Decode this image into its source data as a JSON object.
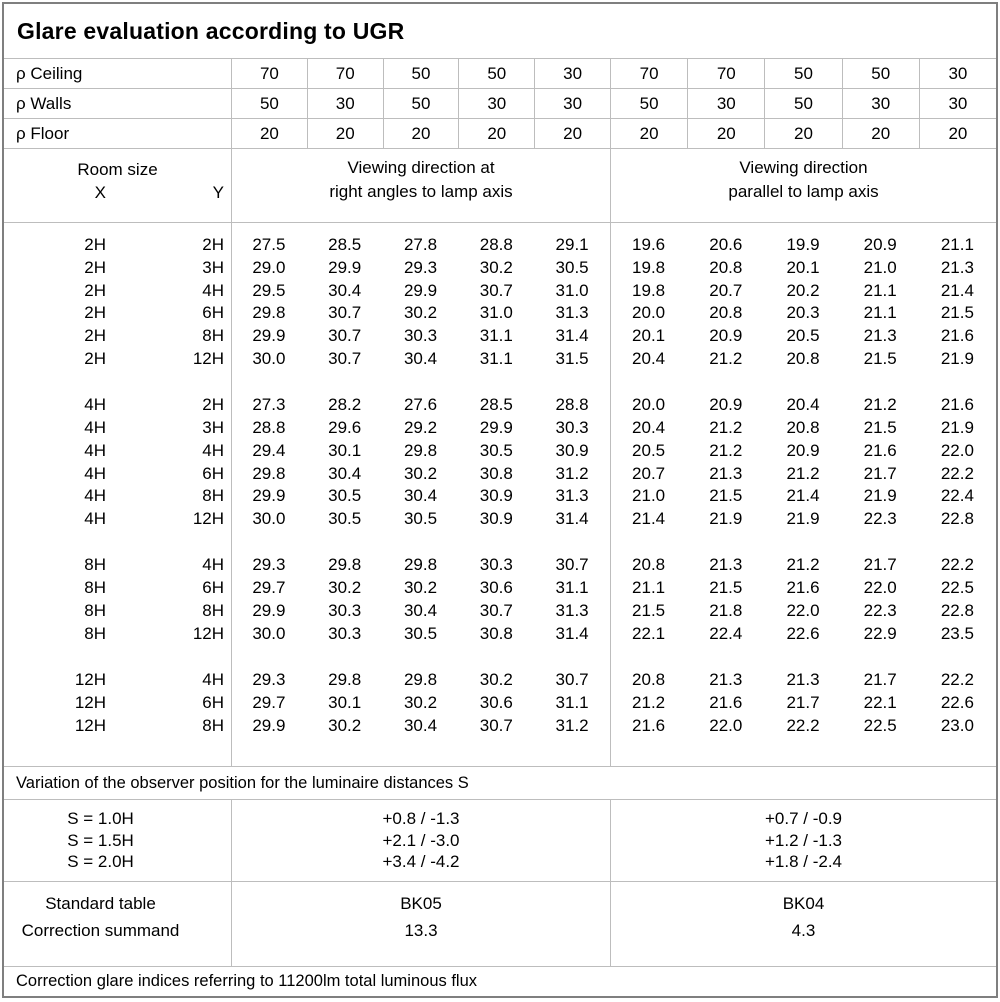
{
  "title": "Glare evaluation according to UGR",
  "reflectances": {
    "rows": [
      {
        "label": "ρ Ceiling",
        "values": [
          "70",
          "70",
          "50",
          "50",
          "30",
          "70",
          "70",
          "50",
          "50",
          "30"
        ]
      },
      {
        "label": "ρ Walls",
        "values": [
          "50",
          "30",
          "50",
          "30",
          "30",
          "50",
          "30",
          "50",
          "30",
          "30"
        ]
      },
      {
        "label": "ρ Floor",
        "values": [
          "20",
          "20",
          "20",
          "20",
          "20",
          "20",
          "20",
          "20",
          "20",
          "20"
        ]
      }
    ]
  },
  "header": {
    "room_size": "Room size",
    "x": "X",
    "y": "Y",
    "crosswise": [
      "Viewing direction at",
      "right angles to lamp axis"
    ],
    "parallel": [
      "Viewing direction",
      "parallel to lamp axis"
    ]
  },
  "ugr_table": {
    "blocks": [
      {
        "rows": [
          {
            "x": "2H",
            "y": "2H",
            "crosswise": [
              "27.5",
              "28.5",
              "27.8",
              "28.8",
              "29.1"
            ],
            "parallel": [
              "19.6",
              "20.6",
              "19.9",
              "20.9",
              "21.1"
            ]
          },
          {
            "x": "2H",
            "y": "3H",
            "crosswise": [
              "29.0",
              "29.9",
              "29.3",
              "30.2",
              "30.5"
            ],
            "parallel": [
              "19.8",
              "20.8",
              "20.1",
              "21.0",
              "21.3"
            ]
          },
          {
            "x": "2H",
            "y": "4H",
            "crosswise": [
              "29.5",
              "30.4",
              "29.9",
              "30.7",
              "31.0"
            ],
            "parallel": [
              "19.8",
              "20.7",
              "20.2",
              "21.1",
              "21.4"
            ]
          },
          {
            "x": "2H",
            "y": "6H",
            "crosswise": [
              "29.8",
              "30.7",
              "30.2",
              "31.0",
              "31.3"
            ],
            "parallel": [
              "20.0",
              "20.8",
              "20.3",
              "21.1",
              "21.5"
            ]
          },
          {
            "x": "2H",
            "y": "8H",
            "crosswise": [
              "29.9",
              "30.7",
              "30.3",
              "31.1",
              "31.4"
            ],
            "parallel": [
              "20.1",
              "20.9",
              "20.5",
              "21.3",
              "21.6"
            ]
          },
          {
            "x": "2H",
            "y": "12H",
            "crosswise": [
              "30.0",
              "30.7",
              "30.4",
              "31.1",
              "31.5"
            ],
            "parallel": [
              "20.4",
              "21.2",
              "20.8",
              "21.5",
              "21.9"
            ]
          }
        ]
      },
      {
        "rows": [
          {
            "x": "4H",
            "y": "2H",
            "crosswise": [
              "27.3",
              "28.2",
              "27.6",
              "28.5",
              "28.8"
            ],
            "parallel": [
              "20.0",
              "20.9",
              "20.4",
              "21.2",
              "21.6"
            ]
          },
          {
            "x": "4H",
            "y": "3H",
            "crosswise": [
              "28.8",
              "29.6",
              "29.2",
              "29.9",
              "30.3"
            ],
            "parallel": [
              "20.4",
              "21.2",
              "20.8",
              "21.5",
              "21.9"
            ]
          },
          {
            "x": "4H",
            "y": "4H",
            "crosswise": [
              "29.4",
              "30.1",
              "29.8",
              "30.5",
              "30.9"
            ],
            "parallel": [
              "20.5",
              "21.2",
              "20.9",
              "21.6",
              "22.0"
            ]
          },
          {
            "x": "4H",
            "y": "6H",
            "crosswise": [
              "29.8",
              "30.4",
              "30.2",
              "30.8",
              "31.2"
            ],
            "parallel": [
              "20.7",
              "21.3",
              "21.2",
              "21.7",
              "22.2"
            ]
          },
          {
            "x": "4H",
            "y": "8H",
            "crosswise": [
              "29.9",
              "30.5",
              "30.4",
              "30.9",
              "31.3"
            ],
            "parallel": [
              "21.0",
              "21.5",
              "21.4",
              "21.9",
              "22.4"
            ]
          },
          {
            "x": "4H",
            "y": "12H",
            "crosswise": [
              "30.0",
              "30.5",
              "30.5",
              "30.9",
              "31.4"
            ],
            "parallel": [
              "21.4",
              "21.9",
              "21.9",
              "22.3",
              "22.8"
            ]
          }
        ]
      },
      {
        "rows": [
          {
            "x": "8H",
            "y": "4H",
            "crosswise": [
              "29.3",
              "29.8",
              "29.8",
              "30.3",
              "30.7"
            ],
            "parallel": [
              "20.8",
              "21.3",
              "21.2",
              "21.7",
              "22.2"
            ]
          },
          {
            "x": "8H",
            "y": "6H",
            "crosswise": [
              "29.7",
              "30.2",
              "30.2",
              "30.6",
              "31.1"
            ],
            "parallel": [
              "21.1",
              "21.5",
              "21.6",
              "22.0",
              "22.5"
            ]
          },
          {
            "x": "8H",
            "y": "8H",
            "crosswise": [
              "29.9",
              "30.3",
              "30.4",
              "30.7",
              "31.3"
            ],
            "parallel": [
              "21.5",
              "21.8",
              "22.0",
              "22.3",
              "22.8"
            ]
          },
          {
            "x": "8H",
            "y": "12H",
            "crosswise": [
              "30.0",
              "30.3",
              "30.5",
              "30.8",
              "31.4"
            ],
            "parallel": [
              "22.1",
              "22.4",
              "22.6",
              "22.9",
              "23.5"
            ]
          }
        ]
      },
      {
        "rows": [
          {
            "x": "12H",
            "y": "4H",
            "crosswise": [
              "29.3",
              "29.8",
              "29.8",
              "30.2",
              "30.7"
            ],
            "parallel": [
              "20.8",
              "21.3",
              "21.3",
              "21.7",
              "22.2"
            ]
          },
          {
            "x": "12H",
            "y": "6H",
            "crosswise": [
              "29.7",
              "30.1",
              "30.2",
              "30.6",
              "31.1"
            ],
            "parallel": [
              "21.2",
              "21.6",
              "21.7",
              "22.1",
              "22.6"
            ]
          },
          {
            "x": "12H",
            "y": "8H",
            "crosswise": [
              "29.9",
              "30.2",
              "30.4",
              "30.7",
              "31.2"
            ],
            "parallel": [
              "21.6",
              "22.0",
              "22.2",
              "22.5",
              "23.0"
            ]
          }
        ]
      }
    ]
  },
  "variation": {
    "note": "Variation of the observer position for the luminaire distances S",
    "s_values": [
      "S = 1.0H",
      "S = 1.5H",
      "S = 2.0H"
    ],
    "crosswise": [
      "+0.8 / -1.3",
      "+2.1 / -3.0",
      "+3.4 / -4.2"
    ],
    "parallel": [
      "+0.7 / -0.9",
      "+1.2 / -1.3",
      "+1.8 / -2.4"
    ]
  },
  "summary": {
    "labels": [
      "Standard table",
      "Correction summand"
    ],
    "crosswise": [
      "BK05",
      "13.3"
    ],
    "parallel": [
      "BK04",
      "4.3"
    ]
  },
  "footer": "Correction glare indices referring to 11200lm total luminous flux",
  "colors": {
    "grid_line": "#bdbdbd",
    "frame": "#7f7f7f",
    "text": "#000000",
    "background": "#ffffff"
  }
}
